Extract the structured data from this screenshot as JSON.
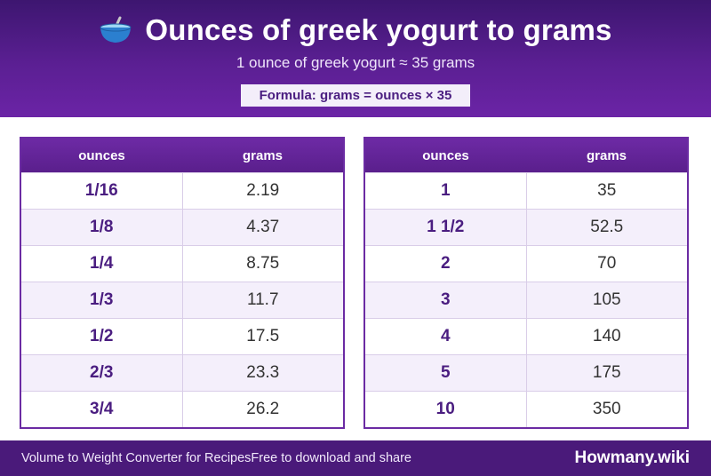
{
  "header": {
    "icon": "bowl-icon",
    "title": "Ounces of greek yogurt to grams",
    "subtitle": "1 ounce of greek yogurt ≈ 35 grams",
    "formula": "Formula: grams = ounces × 35"
  },
  "tables": {
    "left": {
      "headers": [
        "ounces",
        "grams"
      ],
      "rows": [
        [
          "1/16",
          "2.19"
        ],
        [
          "1/8",
          "4.37"
        ],
        [
          "1/4",
          "8.75"
        ],
        [
          "1/3",
          "11.7"
        ],
        [
          "1/2",
          "17.5"
        ],
        [
          "2/3",
          "23.3"
        ],
        [
          "3/4",
          "26.2"
        ]
      ]
    },
    "right": {
      "headers": [
        "ounces",
        "grams"
      ],
      "rows": [
        [
          "1",
          "35"
        ],
        [
          "1 1/2",
          "52.5"
        ],
        [
          "2",
          "70"
        ],
        [
          "3",
          "105"
        ],
        [
          "4",
          "140"
        ],
        [
          "5",
          "175"
        ],
        [
          "10",
          "350"
        ]
      ]
    }
  },
  "footer": {
    "left_text": "Volume to Weight Converter for RecipesFree to download and share",
    "brand": "Howmany.wiki"
  },
  "colors": {
    "header_top": "#3d1670",
    "header_bottom": "#6b24a6",
    "accent": "#4a1d80",
    "row_alt": "#f4effb",
    "footer_bg": "#4a1a7a"
  }
}
